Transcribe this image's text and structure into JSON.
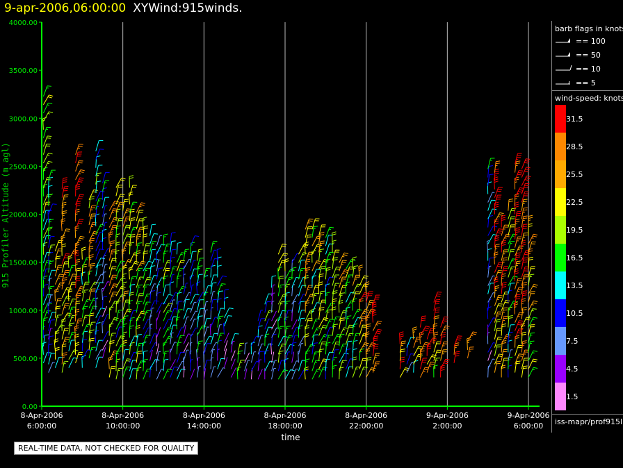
{
  "header": {
    "time": "9-apr-2006,06:00:00",
    "name": "XYWind:915winds."
  },
  "qc_note": "REAL-TIME DATA, NOT CHECKED FOR QUALITY",
  "legend": {
    "barb_title": "barb flags in knots",
    "barb_entries": [
      {
        "label": "== 100",
        "kind": "flag"
      },
      {
        "label": "== 50",
        "kind": "flag"
      },
      {
        "label": "== 10",
        "kind": "full"
      },
      {
        "label": "== 5",
        "kind": "half"
      }
    ],
    "speed_title": "wind-speed: knots",
    "speed_bins": [
      {
        "label": "31.5",
        "color": "#ff0000"
      },
      {
        "label": "28.5",
        "color": "#ff8800"
      },
      {
        "label": "25.5",
        "color": "#ffaa00"
      },
      {
        "label": "22.5",
        "color": "#ffff00"
      },
      {
        "label": "19.5",
        "color": "#aaff00"
      },
      {
        "label": "16.5",
        "color": "#00ff00"
      },
      {
        "label": "13.5",
        "color": "#00ffff"
      },
      {
        "label": "10.5",
        "color": "#0000ff"
      },
      {
        "label": "7.5",
        "color": "#6699ff"
      },
      {
        "label": "4.5",
        "color": "#9900ff"
      },
      {
        "label": "1.5",
        "color": "#ff88ff"
      }
    ],
    "source": "iss-mapr/prof915l"
  },
  "chart_data": {
    "type": "scatter",
    "title": "9-apr-2006,06:00:00  XYWind:915winds.",
    "xlabel": "time",
    "ylabel": "915 Profiler Altitude (m agl)",
    "xlim": [
      "2006-04-08 06:00:00",
      "2006-04-09 06:00:00"
    ],
    "ylim": [
      0,
      4000
    ],
    "x_ticks": [
      {
        "date": "8-Apr-2006",
        "time": "6:00:00"
      },
      {
        "date": "8-Apr-2006",
        "time": "10:00:00"
      },
      {
        "date": "8-Apr-2006",
        "time": "14:00:00"
      },
      {
        "date": "8-Apr-2006",
        "time": "18:00:00"
      },
      {
        "date": "8-Apr-2006",
        "time": "22:00:00"
      },
      {
        "date": "9-Apr-2006",
        "time": "2:00:00"
      },
      {
        "date": "9-Apr-2006",
        "time": "6:00:00"
      }
    ],
    "y_ticks": [
      "0.00",
      "500.00",
      "1000.00",
      "1500.00",
      "2000.00",
      "2500.00",
      "3000.00",
      "3500.00",
      "4000.00"
    ],
    "grid": "vertical lines at time ticks",
    "legend_position": "right",
    "series_note": "wind barbs colored by wind speed (knots)",
    "columns": [
      {
        "time": "2006-04-08 06:05",
        "bottom": 450,
        "top": 3250,
        "speed": 16
      },
      {
        "time": "2006-04-08 06:20",
        "bottom": 350,
        "top": 2350,
        "speed": 13
      },
      {
        "time": "2006-04-08 06:40",
        "bottom": 400,
        "top": 1700,
        "speed": 23
      },
      {
        "time": "2006-04-08 07:00",
        "bottom": 350,
        "top": 2300,
        "speed": 26
      },
      {
        "time": "2006-04-08 07:20",
        "bottom": 400,
        "top": 1600,
        "speed": 19
      },
      {
        "time": "2006-04-08 07:40",
        "bottom": 450,
        "top": 2650,
        "speed": 28
      },
      {
        "time": "2006-04-08 08:00",
        "bottom": 400,
        "top": 1600,
        "speed": 17
      },
      {
        "time": "2006-04-08 08:20",
        "bottom": 500,
        "top": 2200,
        "speed": 22
      },
      {
        "time": "2006-04-08 08:40",
        "bottom": 400,
        "top": 2700,
        "speed": 13
      },
      {
        "time": "2006-04-08 09:00",
        "bottom": 500,
        "top": 2400,
        "speed": 9
      },
      {
        "time": "2006-04-08 09:20",
        "bottom": 300,
        "top": 2100,
        "speed": 24
      },
      {
        "time": "2006-04-08 09:40",
        "bottom": 280,
        "top": 2300,
        "speed": 19
      },
      {
        "time": "2006-04-08 10:00",
        "bottom": 300,
        "top": 2050,
        "speed": 21
      },
      {
        "time": "2006-04-08 10:20",
        "bottom": 280,
        "top": 2300,
        "speed": 17
      },
      {
        "time": "2006-04-08 10:40",
        "bottom": 280,
        "top": 2050,
        "speed": 20
      },
      {
        "time": "2006-04-08 11:00",
        "bottom": 280,
        "top": 1850,
        "speed": 15
      },
      {
        "time": "2006-04-08 11:20",
        "bottom": 300,
        "top": 1800,
        "speed": 12
      },
      {
        "time": "2006-04-08 11:40",
        "bottom": 280,
        "top": 1750,
        "speed": 9
      },
      {
        "time": "2006-04-08 12:00",
        "bottom": 280,
        "top": 1750,
        "speed": 17
      },
      {
        "time": "2006-04-08 12:20",
        "bottom": 300,
        "top": 1700,
        "speed": 11
      },
      {
        "time": "2006-04-08 12:40",
        "bottom": 280,
        "top": 1600,
        "speed": 14
      },
      {
        "time": "2006-04-08 13:00",
        "bottom": 300,
        "top": 1550,
        "speed": 10
      },
      {
        "time": "2006-04-08 13:20",
        "bottom": 280,
        "top": 1700,
        "speed": 8
      },
      {
        "time": "2006-04-08 13:40",
        "bottom": 300,
        "top": 1550,
        "speed": 13
      },
      {
        "time": "2006-04-08 14:00",
        "bottom": 280,
        "top": 1400,
        "speed": 12
      },
      {
        "time": "2006-04-08 14:20",
        "bottom": 300,
        "top": 1650,
        "speed": 10
      },
      {
        "time": "2006-04-08 14:40",
        "bottom": 300,
        "top": 1600,
        "speed": 13
      },
      {
        "time": "2006-04-08 15:00",
        "bottom": 400,
        "top": 1100,
        "speed": 9
      },
      {
        "time": "2006-04-08 15:20",
        "bottom": 300,
        "top": 700,
        "speed": 6
      },
      {
        "time": "2006-04-08 15:40",
        "bottom": 280,
        "top": 550,
        "speed": 16
      },
      {
        "time": "2006-04-08 16:00",
        "bottom": 280,
        "top": 550,
        "speed": 5
      },
      {
        "time": "2006-04-08 16:20",
        "bottom": 280,
        "top": 700,
        "speed": 8
      },
      {
        "time": "2006-04-08 16:40",
        "bottom": 280,
        "top": 950,
        "speed": 9
      },
      {
        "time": "2006-04-08 17:00",
        "bottom": 280,
        "top": 1100,
        "speed": 12
      },
      {
        "time": "2006-04-08 17:20",
        "bottom": 280,
        "top": 1300,
        "speed": 7
      },
      {
        "time": "2006-04-08 17:40",
        "bottom": 280,
        "top": 1600,
        "speed": 18
      },
      {
        "time": "2006-04-08 18:00",
        "bottom": 280,
        "top": 1450,
        "speed": 15
      },
      {
        "time": "2006-04-08 18:20",
        "bottom": 280,
        "top": 1500,
        "speed": 9
      },
      {
        "time": "2006-04-08 18:40",
        "bottom": 280,
        "top": 1600,
        "speed": 14
      },
      {
        "time": "2006-04-08 19:00",
        "bottom": 280,
        "top": 1850,
        "speed": 22
      },
      {
        "time": "2006-04-08 19:20",
        "bottom": 280,
        "top": 1900,
        "speed": 18
      },
      {
        "time": "2006-04-08 19:40",
        "bottom": 300,
        "top": 1850,
        "speed": 20
      },
      {
        "time": "2006-04-08 20:00",
        "bottom": 280,
        "top": 1800,
        "speed": 15
      },
      {
        "time": "2006-04-08 20:20",
        "bottom": 300,
        "top": 1750,
        "speed": 18
      },
      {
        "time": "2006-04-08 20:40",
        "bottom": 280,
        "top": 1550,
        "speed": 21
      },
      {
        "time": "2006-04-08 21:00",
        "bottom": 300,
        "top": 1500,
        "speed": 17
      },
      {
        "time": "2006-04-08 21:20",
        "bottom": 300,
        "top": 1450,
        "speed": 19
      },
      {
        "time": "2006-04-08 21:40",
        "bottom": 300,
        "top": 1350,
        "speed": 24
      },
      {
        "time": "2006-04-08 22:00",
        "bottom": 300,
        "top": 1250,
        "speed": 27
      },
      {
        "time": "2006-04-08 22:20",
        "bottom": 350,
        "top": 1100,
        "speed": 30
      },
      {
        "time": "2006-04-08 23:40",
        "bottom": 300,
        "top": 700,
        "speed": 28
      },
      {
        "time": "2006-04-09 00:00",
        "bottom": 350,
        "top": 650,
        "speed": 13
      },
      {
        "time": "2006-04-09 00:20",
        "bottom": 350,
        "top": 700,
        "speed": 22
      },
      {
        "time": "2006-04-09 00:40",
        "bottom": 300,
        "top": 850,
        "speed": 31
      },
      {
        "time": "2006-04-09 01:00",
        "bottom": 350,
        "top": 750,
        "speed": 29
      },
      {
        "time": "2006-04-09 01:20",
        "bottom": 300,
        "top": 1100,
        "speed": 26
      },
      {
        "time": "2006-04-09 01:40",
        "bottom": 300,
        "top": 900,
        "speed": 30
      },
      {
        "time": "2006-04-09 02:20",
        "bottom": 450,
        "top": 700,
        "speed": 32
      },
      {
        "time": "2006-04-09 03:00",
        "bottom": 500,
        "top": 750,
        "speed": 29
      },
      {
        "time": "2006-04-09 04:00",
        "bottom": 300,
        "top": 2500,
        "speed": 10
      },
      {
        "time": "2006-04-09 04:20",
        "bottom": 350,
        "top": 2450,
        "speed": 28
      },
      {
        "time": "2006-04-09 04:40",
        "bottom": 300,
        "top": 1900,
        "speed": 27
      },
      {
        "time": "2006-04-09 05:00",
        "bottom": 300,
        "top": 2100,
        "speed": 17
      },
      {
        "time": "2006-04-09 05:20",
        "bottom": 350,
        "top": 2600,
        "speed": 31
      },
      {
        "time": "2006-04-09 05:40",
        "bottom": 300,
        "top": 2550,
        "speed": 29
      },
      {
        "time": "2006-04-09 06:00",
        "bottom": 300,
        "top": 1900,
        "speed": 22
      }
    ]
  }
}
